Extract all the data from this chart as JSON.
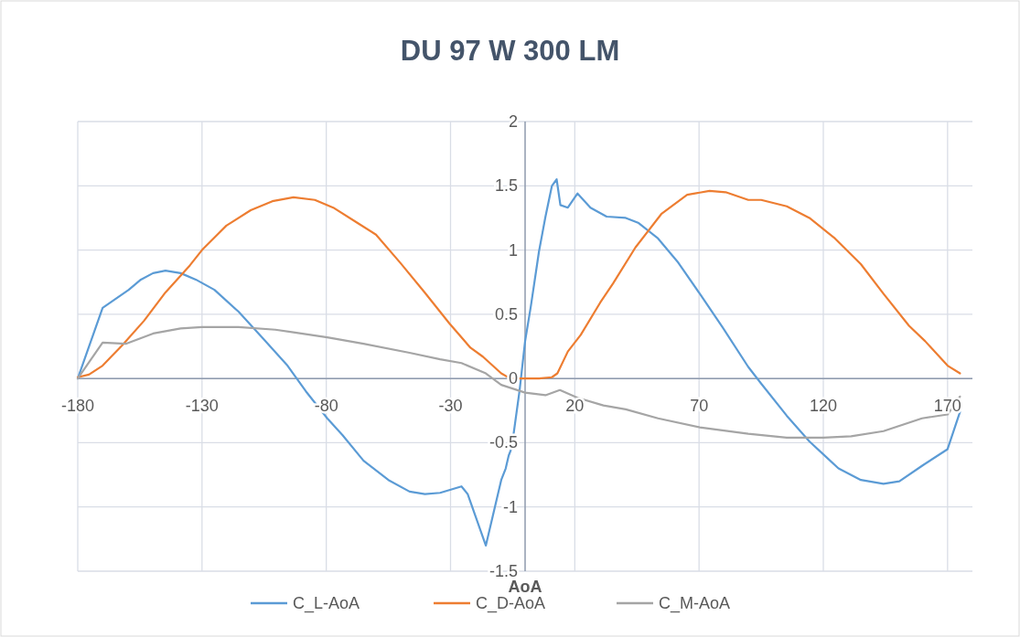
{
  "chart_data": {
    "type": "line",
    "title": "DU 97 W 300 LM",
    "xlabel": "AoA",
    "xlim": [
      -180,
      180
    ],
    "xticks": [
      -180,
      -130,
      -80,
      -30,
      20,
      70,
      120,
      170
    ],
    "ylim": [
      -1.5,
      2
    ],
    "yticks": [
      -1.5,
      -1,
      -0.5,
      0,
      0.5,
      1,
      1.5,
      2
    ],
    "grid": true,
    "legend": "bottom",
    "marker": "none",
    "line_style": "solid",
    "series": [
      {
        "name": "C_L-AoA",
        "color": "#5b9bd5",
        "x": [
          -180,
          -170,
          -159.5,
          -154.6,
          -149.7,
          -144.7,
          -138.6,
          -132.5,
          -125,
          -115.3,
          -105.4,
          -95.6,
          -88.2,
          -79.6,
          -73.5,
          -65,
          -55,
          -46.5,
          -40.3,
          -34.2,
          -25.6,
          -23.1,
          -15.8,
          -9.6,
          -7.8,
          -6.6,
          -5.4,
          -2.2,
          0,
          2.3,
          5.6,
          8.2,
          10.8,
          12.7,
          14.2,
          17.2,
          21.1,
          26.3,
          32.8,
          40.5,
          45.7,
          53.5,
          61.3,
          70.3,
          79.4,
          89.8,
          95,
          105.3,
          114.4,
          120,
          126.1,
          135.1,
          144.2,
          150.6,
          159.7,
          170,
          175
        ],
        "values": [
          0,
          0.55,
          0.69,
          0.77,
          0.82,
          0.84,
          0.82,
          0.77,
          0.69,
          0.52,
          0.31,
          0.1,
          -0.1,
          -0.31,
          -0.44,
          -0.64,
          -0.79,
          -0.88,
          -0.9,
          -0.89,
          -0.84,
          -0.9,
          -1.3,
          -0.79,
          -0.7,
          -0.6,
          -0.54,
          -0.09,
          0.29,
          0.56,
          0.99,
          1.26,
          1.5,
          1.55,
          1.35,
          1.33,
          1.44,
          1.33,
          1.26,
          1.25,
          1.21,
          1.09,
          0.91,
          0.66,
          0.4,
          0.09,
          -0.04,
          -0.29,
          -0.49,
          -0.59,
          -0.7,
          -0.79,
          -0.82,
          -0.8,
          -0.68,
          -0.55,
          -0.26
        ]
      },
      {
        "name": "C_D-AoA",
        "color": "#ed7d31",
        "x": [
          -180,
          -175.5,
          -170,
          -162,
          -153.3,
          -144.7,
          -134.9,
          -130,
          -120.2,
          -110.4,
          -101.7,
          -93.2,
          -84.6,
          -77.2,
          -67.4,
          -60,
          -50.2,
          -40.4,
          -30.5,
          -22,
          -17,
          -9.6,
          -6,
          5.6,
          10.8,
          13,
          17.2,
          22.4,
          30.2,
          35.4,
          44.4,
          54.8,
          65.2,
          74.2,
          80.7,
          89.8,
          95,
          105.3,
          114.4,
          124.7,
          135.1,
          144.2,
          154.5,
          161,
          170,
          175
        ],
        "values": [
          0.01,
          0.03,
          0.1,
          0.26,
          0.45,
          0.67,
          0.88,
          1,
          1.19,
          1.31,
          1.38,
          1.41,
          1.39,
          1.33,
          1.21,
          1.12,
          0.9,
          0.67,
          0.43,
          0.24,
          0.17,
          0.04,
          0,
          0,
          0.01,
          0.04,
          0.21,
          0.34,
          0.59,
          0.74,
          1.02,
          1.28,
          1.43,
          1.46,
          1.45,
          1.39,
          1.39,
          1.34,
          1.25,
          1.09,
          0.89,
          0.66,
          0.41,
          0.29,
          0.1,
          0.04
        ]
      },
      {
        "name": "C_M-AoA",
        "color": "#a5a5a5",
        "x": [
          -180,
          -170,
          -160.7,
          -149.7,
          -138.6,
          -130,
          -115.3,
          -100.5,
          -93.2,
          -79.6,
          -65,
          -46.5,
          -34.2,
          -25.6,
          -15.8,
          -9.6,
          0,
          8.2,
          14,
          21.1,
          31.5,
          40.5,
          53.5,
          70.3,
          89.8,
          105.3,
          120,
          131.2,
          144.2,
          159.7,
          170,
          175
        ],
        "values": [
          0,
          0.28,
          0.27,
          0.35,
          0.39,
          0.4,
          0.4,
          0.38,
          0.36,
          0.32,
          0.27,
          0.2,
          0.15,
          0.12,
          0.04,
          -0.05,
          -0.11,
          -0.13,
          -0.09,
          -0.15,
          -0.21,
          -0.24,
          -0.31,
          -0.38,
          -0.43,
          -0.46,
          -0.46,
          -0.45,
          -0.41,
          -0.31,
          -0.28,
          -0.14
        ]
      }
    ]
  }
}
